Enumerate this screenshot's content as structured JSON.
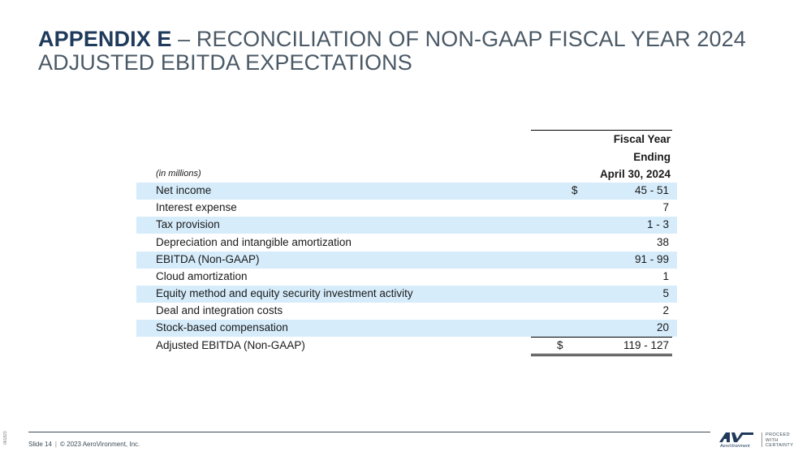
{
  "title": {
    "bold": "APPENDIX E",
    "rest": " – RECONCILIATION OF NON-GAAP FISCAL YEAR 2024 ADJUSTED EBITDA EXPECTATIONS"
  },
  "table": {
    "header_line1": "Fiscal Year",
    "header_line2": "Ending",
    "header_line3": "April 30, 2024",
    "units": "(in millions)",
    "rows": [
      {
        "label": "Net income",
        "currency": "$",
        "value": "45 - 51"
      },
      {
        "label": "Interest expense",
        "currency": "",
        "value": "7"
      },
      {
        "label": "Tax provision",
        "currency": "",
        "value": "1 - 3"
      },
      {
        "label": "Depreciation and intangible amortization",
        "currency": "",
        "value": "38"
      },
      {
        "label": "EBITDA (Non-GAAP)",
        "currency": "",
        "value": "91 - 99"
      },
      {
        "label": "Cloud amortization",
        "currency": "",
        "value": "1"
      },
      {
        "label": "Equity method and equity security investment activity",
        "currency": "",
        "value": "5"
      },
      {
        "label": "Deal and integration costs",
        "currency": "",
        "value": "2"
      },
      {
        "label": "Stock-based compensation",
        "currency": "",
        "value": "20"
      },
      {
        "label": "Adjusted EBITDA (Non-GAAP)",
        "currency": "$",
        "value": "119 - 127"
      }
    ]
  },
  "footer": {
    "slide": "Slide 14",
    "separator": "|",
    "copyright": "© 2023 AeroVironment, Inc.",
    "side_code": "061823"
  },
  "logo": {
    "mark": "AV",
    "name": "AeroVironment",
    "tagline_1": "PROCEED",
    "tagline_2": "WITH",
    "tagline_3": "CERTAINTY"
  },
  "colors": {
    "title_bold": "#1f3a5b",
    "row_shade": "#d6ecfb"
  }
}
